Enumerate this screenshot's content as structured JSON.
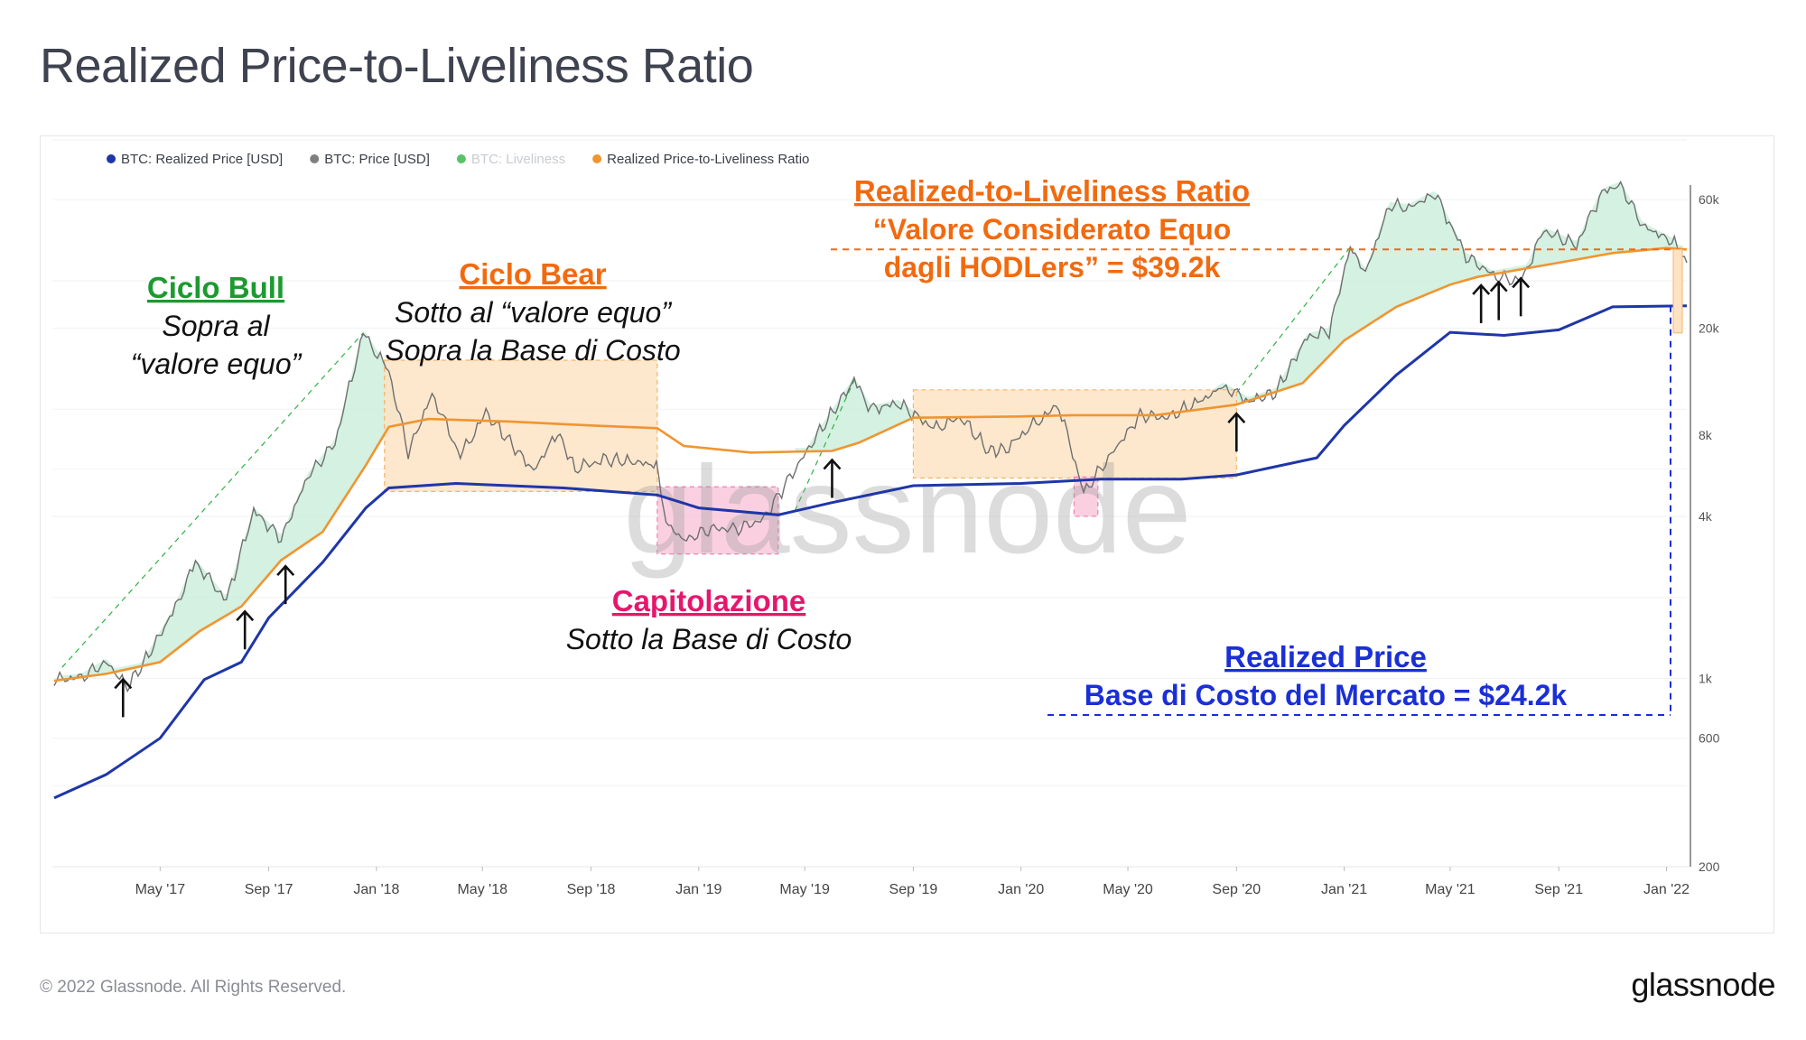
{
  "title": "Realized Price-to-Liveliness Ratio",
  "footer": {
    "copyright": "© 2022 Glassnode. All Rights Reserved.",
    "logo": "glassnode"
  },
  "watermark": "glassnode",
  "colors": {
    "realized_price": "#1f36a8",
    "price": "#7f7f7f",
    "liveliness": "#2fb341",
    "ratio": "#f0952f",
    "bull_fill": "#cdeedd",
    "bear_fill": "#fde3c4",
    "capitulation_fill": "#f9c8dc",
    "green_text": "#1c9a30",
    "orange_text": "#f26a0f",
    "pink_text": "#e5176c",
    "blue_text": "#1a2fd6"
  },
  "chart_data": {
    "type": "line",
    "title": "Realized Price-to-Liveliness Ratio",
    "y_scale": "log",
    "ylim": [
      200,
      100000
    ],
    "y_ticks": [
      "60k",
      "20k",
      "8k",
      "4k",
      "1k",
      "600",
      "200"
    ],
    "y_tick_values": [
      60000,
      20000,
      8000,
      4000,
      1000,
      600,
      200
    ],
    "x_ticks": [
      "May '17",
      "Sep '17",
      "Jan '18",
      "May '18",
      "Sep '18",
      "Jan '19",
      "May '19",
      "Sep '19",
      "Jan '20",
      "May '20",
      "Sep '20",
      "Jan '21",
      "May '21",
      "Sep '21",
      "Jan '22"
    ],
    "x_tick_dates": [
      "2017-05-01",
      "2017-09-01",
      "2018-01-01",
      "2018-05-01",
      "2018-09-01",
      "2019-01-01",
      "2019-05-01",
      "2019-09-01",
      "2020-01-01",
      "2020-05-01",
      "2020-09-01",
      "2021-01-01",
      "2021-05-01",
      "2021-09-01",
      "2022-01-01"
    ],
    "legend": [
      {
        "label": "BTC: Realized Price [USD]",
        "color": "#1f36a8",
        "muted": false
      },
      {
        "label": "BTC: Price [USD]",
        "color": "#7f7f7f",
        "muted": false
      },
      {
        "label": "BTC: Liveliness",
        "color": "#2fb341",
        "muted": true
      },
      {
        "label": "Realized Price-to-Liveliness Ratio",
        "color": "#f0952f",
        "muted": false
      }
    ],
    "series": [
      {
        "name": "BTC: Price [USD]",
        "points": [
          [
            "2017-01-01",
            990
          ],
          [
            "2017-02-01",
            1010
          ],
          [
            "2017-03-01",
            1150
          ],
          [
            "2017-03-25",
            930
          ],
          [
            "2017-04-15",
            1180
          ],
          [
            "2017-05-15",
            1750
          ],
          [
            "2017-06-10",
            2700
          ],
          [
            "2017-07-15",
            1950
          ],
          [
            "2017-08-15",
            4200
          ],
          [
            "2017-09-15",
            3300
          ],
          [
            "2017-10-15",
            5600
          ],
          [
            "2017-11-15",
            7500
          ],
          [
            "2017-12-17",
            19200
          ],
          [
            "2018-01-15",
            13800
          ],
          [
            "2018-02-06",
            6900
          ],
          [
            "2018-03-05",
            11400
          ],
          [
            "2018-04-06",
            6700
          ],
          [
            "2018-05-05",
            9700
          ],
          [
            "2018-06-28",
            5900
          ],
          [
            "2018-07-25",
            8200
          ],
          [
            "2018-08-14",
            6000
          ],
          [
            "2018-09-15",
            6500
          ],
          [
            "2018-10-15",
            6400
          ],
          [
            "2018-11-14",
            6200
          ],
          [
            "2018-11-25",
            3800
          ],
          [
            "2018-12-15",
            3250
          ],
          [
            "2019-01-15",
            3600
          ],
          [
            "2019-02-15",
            3600
          ],
          [
            "2019-03-15",
            3900
          ],
          [
            "2019-04-05",
            5000
          ],
          [
            "2019-05-15",
            8000
          ],
          [
            "2019-06-26",
            12800
          ],
          [
            "2019-07-15",
            10000
          ],
          [
            "2019-08-15",
            10500
          ],
          [
            "2019-09-24",
            8500
          ],
          [
            "2019-10-26",
            9300
          ],
          [
            "2019-11-25",
            7000
          ],
          [
            "2019-12-15",
            7100
          ],
          [
            "2020-01-15",
            8800
          ],
          [
            "2020-02-13",
            10300
          ],
          [
            "2020-03-12",
            4900
          ],
          [
            "2020-04-15",
            7000
          ],
          [
            "2020-05-15",
            9500
          ],
          [
            "2020-06-15",
            9300
          ],
          [
            "2020-07-28",
            11000
          ],
          [
            "2020-08-17",
            12200
          ],
          [
            "2020-09-15",
            10700
          ],
          [
            "2020-10-15",
            11500
          ],
          [
            "2020-11-20",
            18500
          ],
          [
            "2020-12-15",
            19500
          ],
          [
            "2021-01-08",
            40000
          ],
          [
            "2021-01-25",
            32000
          ],
          [
            "2021-02-21",
            57000
          ],
          [
            "2021-03-15",
            56000
          ],
          [
            "2021-04-14",
            63000
          ],
          [
            "2021-05-19",
            37000
          ],
          [
            "2021-06-22",
            31000
          ],
          [
            "2021-07-20",
            29800
          ],
          [
            "2021-08-15",
            46000
          ],
          [
            "2021-09-21",
            40700
          ],
          [
            "2021-10-20",
            64000
          ],
          [
            "2021-11-10",
            68000
          ],
          [
            "2021-12-05",
            48000
          ],
          [
            "2022-01-10",
            41500
          ],
          [
            "2022-01-24",
            35000
          ]
        ]
      },
      {
        "name": "Realized Price-to-Liveliness Ratio",
        "points": [
          [
            "2017-01-01",
            980
          ],
          [
            "2017-03-01",
            1040
          ],
          [
            "2017-05-01",
            1150
          ],
          [
            "2017-06-15",
            1500
          ],
          [
            "2017-08-01",
            1850
          ],
          [
            "2017-09-15",
            2750
          ],
          [
            "2017-11-01",
            3500
          ],
          [
            "2017-12-20",
            6200
          ],
          [
            "2018-01-15",
            8600
          ],
          [
            "2018-03-01",
            9200
          ],
          [
            "2018-06-01",
            9000
          ],
          [
            "2018-09-01",
            8700
          ],
          [
            "2018-11-15",
            8500
          ],
          [
            "2018-12-15",
            7300
          ],
          [
            "2019-03-01",
            6900
          ],
          [
            "2019-06-01",
            7000
          ],
          [
            "2019-07-01",
            7500
          ],
          [
            "2019-09-01",
            9300
          ],
          [
            "2020-01-01",
            9400
          ],
          [
            "2020-03-01",
            9500
          ],
          [
            "2020-06-01",
            9500
          ],
          [
            "2020-09-01",
            10400
          ],
          [
            "2020-11-15",
            12500
          ],
          [
            "2021-01-01",
            18000
          ],
          [
            "2021-03-01",
            24000
          ],
          [
            "2021-05-01",
            29000
          ],
          [
            "2021-06-01",
            31000
          ],
          [
            "2021-09-01",
            35000
          ],
          [
            "2021-11-01",
            38000
          ],
          [
            "2022-01-01",
            39700
          ],
          [
            "2022-01-24",
            39200
          ]
        ]
      },
      {
        "name": "BTC: Realized Price [USD]",
        "points": [
          [
            "2017-01-01",
            360
          ],
          [
            "2017-03-01",
            440
          ],
          [
            "2017-05-01",
            600
          ],
          [
            "2017-06-20",
            990
          ],
          [
            "2017-08-01",
            1150
          ],
          [
            "2017-09-01",
            1680
          ],
          [
            "2017-11-01",
            2700
          ],
          [
            "2017-12-20",
            4300
          ],
          [
            "2018-01-15",
            5100
          ],
          [
            "2018-04-01",
            5300
          ],
          [
            "2018-08-01",
            5100
          ],
          [
            "2018-11-15",
            4800
          ],
          [
            "2019-01-01",
            4300
          ],
          [
            "2019-04-01",
            4050
          ],
          [
            "2019-06-01",
            4500
          ],
          [
            "2019-09-01",
            5200
          ],
          [
            "2020-01-01",
            5300
          ],
          [
            "2020-04-01",
            5500
          ],
          [
            "2020-07-01",
            5500
          ],
          [
            "2020-09-01",
            5700
          ],
          [
            "2020-12-01",
            6600
          ],
          [
            "2021-01-01",
            8700
          ],
          [
            "2021-03-01",
            13400
          ],
          [
            "2021-05-01",
            19300
          ],
          [
            "2021-07-01",
            18800
          ],
          [
            "2021-09-01",
            19700
          ],
          [
            "2021-11-01",
            24000
          ],
          [
            "2022-01-24",
            24200
          ]
        ]
      }
    ],
    "regions": [
      {
        "kind": "bear",
        "from": "2018-01-10",
        "to": "2018-11-15",
        "ymin": 4950,
        "ymax": 15200
      },
      {
        "kind": "capitulation",
        "from": "2018-11-15",
        "to": "2019-04-01",
        "ymin": 2900,
        "ymax": 5150
      },
      {
        "kind": "bear",
        "from": "2019-09-01",
        "to": "2020-09-01",
        "ymin": 5550,
        "ymax": 11800
      },
      {
        "kind": "capitulation",
        "from": "2020-03-01",
        "to": "2020-03-28",
        "ymin": 4000,
        "ymax": 5600
      }
    ],
    "fair_value_usd": 39200,
    "cost_basis_usd": 24200,
    "support_arrows": [
      "2017-03-20",
      "2017-08-05",
      "2017-09-20",
      "2019-06-01",
      "2020-09-01",
      "2021-06-05",
      "2021-06-25",
      "2021-07-20"
    ],
    "annotations": {
      "bull": {
        "heading": "Ciclo Bull",
        "line1": "Sopra al",
        "line2": "“valore equo”"
      },
      "bear": {
        "heading": "Ciclo Bear",
        "line1": "Sotto al “valore equo”",
        "line2": "Sopra la Base di Costo"
      },
      "capitulation": {
        "heading": "Capitolazione",
        "line1": "Sotto la Base di Costo"
      },
      "ratio": {
        "heading": "Realized-to-Liveliness Ratio",
        "line1": "“Valore Considerato Equo",
        "line2": "dagli HODLers” = $39.2k"
      },
      "realized": {
        "heading": "Realized Price",
        "line1": "Base di Costo del Mercato = $24.2k"
      }
    }
  }
}
